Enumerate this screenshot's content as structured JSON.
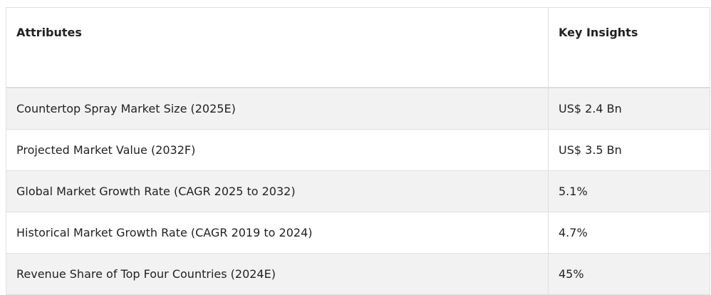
{
  "table": {
    "header": [
      "Attributes",
      "Key Insights"
    ],
    "rows": [
      [
        "Countertop Spray Market Size (2025E)",
        "US$ 2.4 Bn"
      ],
      [
        "Projected Market Value (2032F)",
        "US$ 3.5 Bn"
      ],
      [
        "Global Market Growth Rate (CAGR 2025 to 2032)",
        "5.1%"
      ],
      [
        "Historical Market Growth Rate (CAGR 2019 to 2024)",
        "4.7%"
      ],
      [
        "Revenue Share of Top Four Countries (2024E)",
        "45%"
      ]
    ]
  }
}
